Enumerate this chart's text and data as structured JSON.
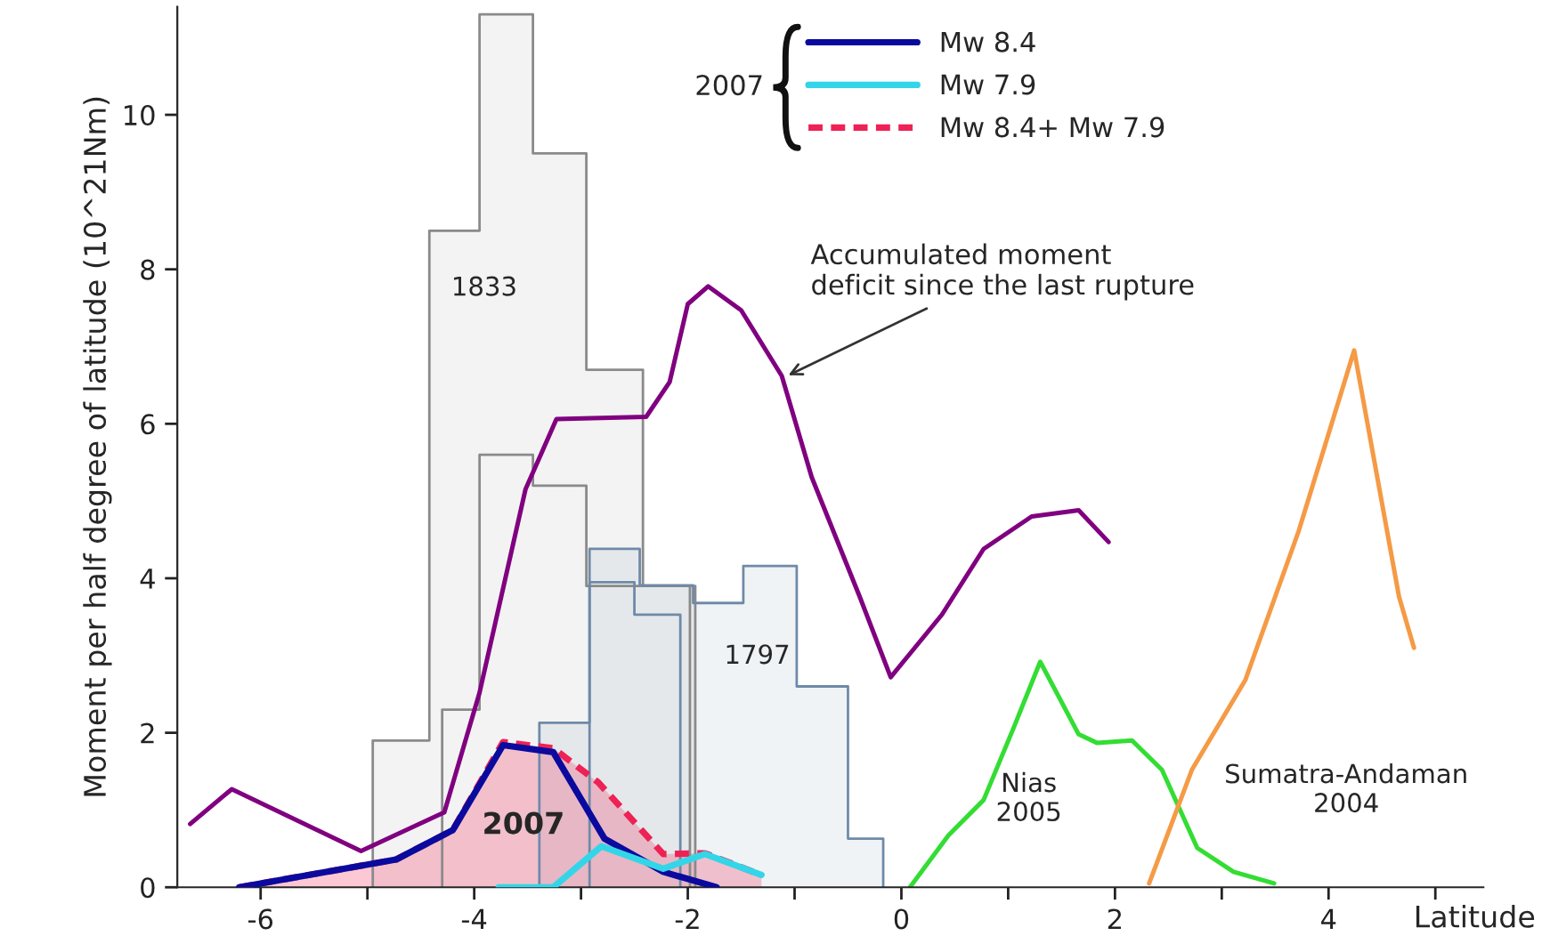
{
  "chart_data": {
    "type": "line",
    "xlabel": "Latitude",
    "ylabel": "Moment per half degree of latitude (10^21Nm)",
    "xlim": [
      -6.78,
      5.45
    ],
    "ylim": [
      0,
      11.4
    ],
    "xticks": [
      -6,
      {
        "value": -5,
        "label": null
      },
      -4,
      {
        "value": -3,
        "label": null
      },
      -2,
      {
        "value": -1,
        "label": null
      },
      0,
      {
        "value": 1,
        "label": null
      },
      2,
      {
        "value": 3,
        "label": null
      },
      4,
      {
        "value": 5,
        "label": null
      }
    ],
    "yticks": [
      0,
      2,
      4,
      6,
      8,
      10
    ],
    "legend": "top",
    "legend_title": "2007",
    "grid": false,
    "series": [
      {
        "type": "area",
        "color": "#8a8a8a",
        "x": [
          -4.95,
          -4.95,
          -4.42,
          -4.42,
          -3.95,
          -3.95,
          -3.45,
          -3.45,
          -2.95,
          -2.95,
          -2.42,
          -2.42,
          -1.93,
          -1.93
        ],
        "values": [
          0,
          1.9,
          1.9,
          8.5,
          8.5,
          11.3,
          11.3,
          9.5,
          9.5,
          6.7,
          6.7,
          3.9,
          3.9,
          0
        ]
      },
      {
        "color": "#8a8a8a",
        "x": [
          -4.3,
          -4.3,
          -3.95,
          -3.95,
          -3.45,
          -3.45,
          -2.95,
          -2.95,
          -1.98,
          -1.98
        ],
        "values": [
          0,
          2.3,
          2.3,
          5.6,
          5.6,
          5.2,
          5.2,
          3.9,
          3.9,
          0
        ]
      },
      {
        "type": "area",
        "color": "#6f8aa8",
        "x": [
          -3.39,
          -3.39,
          -2.92,
          -2.92,
          -2.45,
          -2.45,
          -1.95,
          -1.95,
          -1.48,
          -1.48,
          -0.98,
          -0.98,
          -0.5,
          -0.5,
          -0.17,
          -0.17
        ],
        "values": [
          0,
          2.13,
          2.13,
          4.38,
          4.38,
          3.91,
          3.91,
          3.68,
          3.68,
          4.16,
          4.16,
          2.6,
          2.6,
          0.63,
          0.63,
          0
        ]
      },
      {
        "color": "#6f8aa8",
        "x": [
          -2.92,
          -2.92,
          -2.5,
          -2.5,
          -2.07,
          -2.07
        ],
        "values": [
          0,
          3.95,
          3.95,
          3.53,
          3.53,
          0
        ]
      },
      {
        "color": "#800080",
        "line_style": "solid",
        "x": [
          -6.66,
          -6.27,
          -5.06,
          -4.28,
          -3.95,
          -3.62,
          -3.52,
          -3.23,
          -2.39,
          -2.17,
          -2.0,
          -1.81,
          -1.5,
          -1.12,
          -0.84,
          -0.39,
          -0.1,
          0.38,
          0.77,
          1.22,
          1.66,
          1.94
        ],
        "values": [
          0.82,
          1.27,
          0.47,
          0.97,
          2.52,
          4.54,
          5.15,
          6.06,
          6.09,
          6.54,
          7.55,
          7.78,
          7.47,
          6.62,
          5.31,
          3.76,
          2.72,
          3.53,
          4.38,
          4.8,
          4.88,
          4.47
        ]
      },
      {
        "color": "#33dd33",
        "line_style": "solid",
        "x": [
          0.08,
          0.44,
          0.77,
          1.05,
          1.3,
          1.66,
          1.83,
          2.16,
          2.44,
          2.77,
          3.11,
          3.49
        ],
        "values": [
          0.0,
          0.67,
          1.13,
          2.06,
          2.92,
          1.98,
          1.87,
          1.9,
          1.52,
          0.51,
          0.2,
          0.05
        ]
      },
      {
        "color": "#f59a45",
        "line_style": "solid",
        "x": [
          2.32,
          2.72,
          3.22,
          3.72,
          4.24,
          4.66,
          4.8
        ],
        "values": [
          0.05,
          1.52,
          2.68,
          4.61,
          6.95,
          3.76,
          3.1
        ]
      },
      {
        "type": "area",
        "name": "Mw 8.4+ Mw 7.9",
        "color": "#ee2255",
        "line_style": "dashed",
        "x": [
          -6.2,
          -4.73,
          -4.2,
          -3.73,
          -3.26,
          -2.84,
          -2.23,
          -1.84,
          -1.31
        ],
        "values": [
          0,
          0.36,
          0.74,
          1.88,
          1.8,
          1.36,
          0.43,
          0.44,
          0.16
        ]
      },
      {
        "name": "Mw 8.4",
        "color": "#0a0a9e",
        "line_style": "solid",
        "x": [
          -6.2,
          -4.73,
          -4.2,
          -3.73,
          -3.26,
          -2.78,
          -2.23,
          -1.73
        ],
        "values": [
          0,
          0.36,
          0.74,
          1.84,
          1.75,
          0.63,
          0.2,
          0.0
        ]
      },
      {
        "name": "Mw 7.9",
        "color": "#33d6e8",
        "line_style": "solid",
        "x": [
          -3.77,
          -3.26,
          -2.81,
          -2.23,
          -1.84,
          -1.31
        ],
        "values": [
          0,
          0,
          0.53,
          0.24,
          0.43,
          0.16
        ]
      }
    ],
    "annotations": [
      "1833",
      "1797",
      "2007",
      "Nias\n2005",
      "Sumatra-Andaman\n2004",
      {
        "text": "Accumulated moment\ndeficit since the last rupture",
        "x": -1.1,
        "y": 6.6
      }
    ]
  }
}
